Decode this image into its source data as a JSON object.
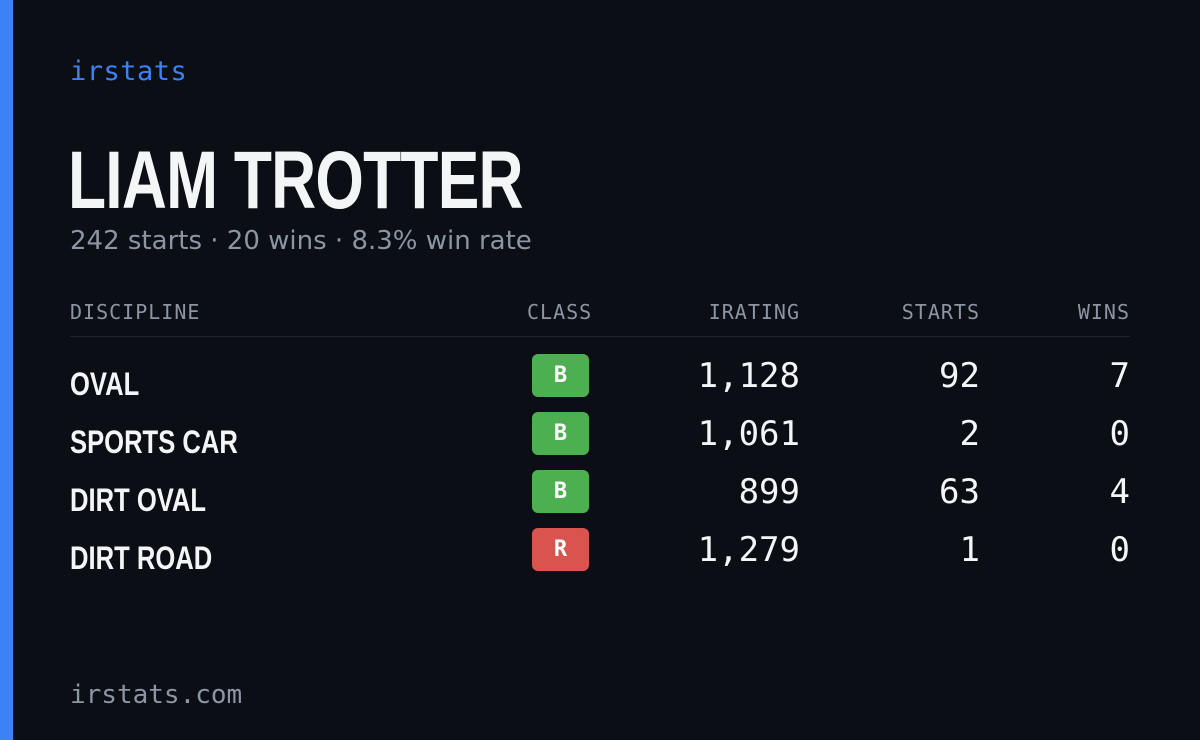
{
  "brand": "irstats",
  "driver": {
    "name": "LIAM TROTTER",
    "summary": "242 starts · 20 wins · 8.3% win rate"
  },
  "table": {
    "headers": {
      "discipline": "DISCIPLINE",
      "class": "CLASS",
      "irating": "IRATING",
      "starts": "STARTS",
      "wins": "WINS"
    },
    "rows": [
      {
        "discipline": "OVAL",
        "class": "B",
        "class_color": "#4caf50",
        "irating": "1,128",
        "starts": "92",
        "wins": "7"
      },
      {
        "discipline": "SPORTS CAR",
        "class": "B",
        "class_color": "#4caf50",
        "irating": "1,061",
        "starts": "2",
        "wins": "0"
      },
      {
        "discipline": "DIRT OVAL",
        "class": "B",
        "class_color": "#4caf50",
        "irating": "899",
        "starts": "63",
        "wins": "4"
      },
      {
        "discipline": "DIRT ROAD",
        "class": "R",
        "class_color": "#d9534f",
        "irating": "1,279",
        "starts": "1",
        "wins": "0"
      }
    ]
  },
  "footer": "irstats.com",
  "colors": {
    "background": "#0b0e14",
    "accent": "#3b82f6",
    "text": "#f4f5f7",
    "muted": "#8c95a3"
  }
}
